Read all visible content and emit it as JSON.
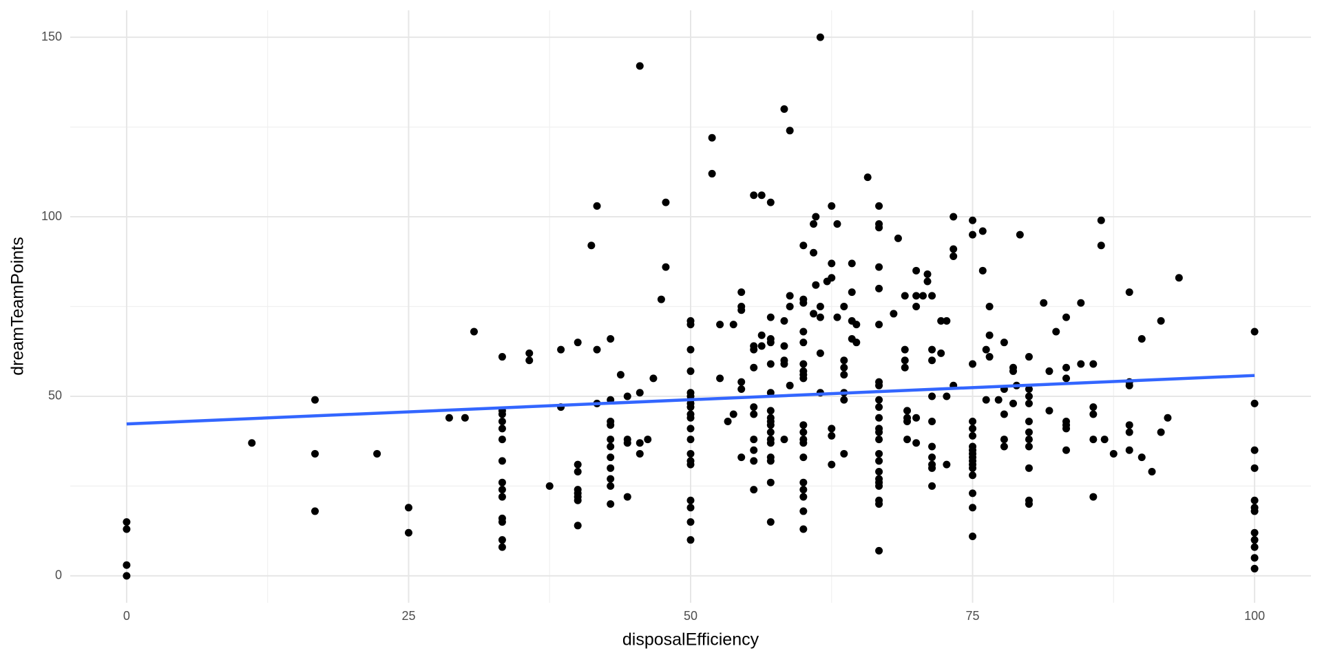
{
  "chart_data": {
    "type": "scatter",
    "x_label": "disposalEfficiency",
    "y_label": "dreamTeamPoints",
    "xlim": [
      -5,
      105
    ],
    "ylim": [
      -7.5,
      157.5
    ],
    "xticks": [
      0,
      25,
      50,
      75,
      100
    ],
    "yticks": [
      0,
      50,
      100,
      150
    ],
    "x_minor_grid": [
      12.5,
      37.5,
      62.5,
      87.5
    ],
    "y_minor_grid": [
      25,
      75,
      125
    ],
    "grid": true,
    "series": [
      {
        "color": "#000000",
        "x": [
          0,
          0,
          0,
          0,
          11.1,
          16.7,
          16.7,
          16.7,
          22.2,
          25,
          25,
          28.6,
          30,
          30.8,
          33.3,
          33.3,
          33.3,
          33.3,
          33.3,
          33.3,
          33.3,
          33.3,
          33.3,
          33.3,
          33.3,
          33.3,
          33.3,
          33.3,
          35.7,
          35.7,
          37.5,
          38.5,
          38.5,
          40,
          40,
          40,
          40,
          40,
          40,
          40,
          40,
          41.2,
          41.7,
          41.7,
          41.7,
          42.9,
          42.9,
          42.9,
          42.9,
          42.9,
          42.9,
          42.9,
          42.9,
          42.9,
          42.9,
          42.9,
          43.8,
          44.4,
          44.4,
          44.4,
          44.4,
          45.5,
          45.5,
          45.5,
          45.5,
          46.2,
          46.7,
          47.4,
          47.8,
          47.8,
          50,
          50,
          50,
          50,
          50,
          50,
          50,
          50,
          50,
          50,
          50,
          50,
          50,
          50,
          50,
          50,
          50,
          50,
          50,
          50,
          51.9,
          51.9,
          52.6,
          52.6,
          53.3,
          53.8,
          53.8,
          54.5,
          54.5,
          54.5,
          54.5,
          54.5,
          54.5,
          55.6,
          55.6,
          55.6,
          55.6,
          55.6,
          55.6,
          55.6,
          55.6,
          55.6,
          55.6,
          56.3,
          56.3,
          56.3,
          57.1,
          57.1,
          57.1,
          57.1,
          57.1,
          57.1,
          57.1,
          57.1,
          57.1,
          57.1,
          57.1,
          57.1,
          57.1,
          57.1,
          57.1,
          57.1,
          57.1,
          58.3,
          58.3,
          58.3,
          58.3,
          58.3,
          58.3,
          58.8,
          58.8,
          58.8,
          58.8,
          60,
          60,
          60,
          60,
          60,
          60,
          60,
          60,
          60,
          60,
          60,
          60,
          60,
          60,
          60,
          60,
          60,
          60,
          60,
          60.9,
          60.9,
          60.9,
          61.1,
          61.1,
          61.5,
          61.5,
          61.5,
          61.5,
          61.5,
          62.1,
          62.5,
          62.5,
          62.5,
          62.5,
          62.5,
          62.5,
          63,
          63,
          63.6,
          63.6,
          63.6,
          63.6,
          63.6,
          63.6,
          63.6,
          64.3,
          64.3,
          64.3,
          64.3,
          64.7,
          64.7,
          65.7,
          66.7,
          66.7,
          66.7,
          66.7,
          66.7,
          66.7,
          66.7,
          66.7,
          66.7,
          66.7,
          66.7,
          66.7,
          66.7,
          66.7,
          66.7,
          66.7,
          66.7,
          66.7,
          66.7,
          66.7,
          66.7,
          66.7,
          66.7,
          68,
          68.4,
          69,
          69,
          69,
          69,
          69.2,
          69.2,
          69.2,
          69.2,
          70,
          70,
          70,
          70,
          70,
          70.6,
          71,
          71,
          71.4,
          71.4,
          71.4,
          71.4,
          71.4,
          71.4,
          71.4,
          71.4,
          71.4,
          71.4,
          72.2,
          72.2,
          72.7,
          72.7,
          72.7,
          73.3,
          73.3,
          73.3,
          73.3,
          75,
          75,
          75,
          75,
          75,
          75,
          75,
          75,
          75,
          75,
          75,
          75,
          75,
          75,
          75,
          75,
          75,
          75.9,
          75.9,
          76.2,
          76.2,
          76.5,
          76.5,
          76.5,
          77.3,
          77.8,
          77.8,
          77.8,
          77.8,
          77.8,
          78.6,
          78.6,
          78.6,
          78.9,
          79.2,
          80,
          80,
          80,
          80,
          80,
          80,
          80,
          80,
          80,
          80,
          80,
          81.3,
          81.8,
          81.8,
          82.4,
          83.3,
          83.3,
          83.3,
          83.3,
          83.3,
          83.3,
          83.3,
          84.6,
          84.6,
          85.7,
          85.7,
          85.7,
          85.7,
          85.7,
          86.4,
          86.4,
          86.7,
          87.5,
          88.9,
          88.9,
          88.9,
          88.9,
          88.9,
          88.9,
          90,
          90,
          90.9,
          91.7,
          91.7,
          92.3,
          93.3,
          100,
          100,
          100,
          100,
          100,
          100,
          100,
          100,
          100,
          100,
          100,
          100
        ],
        "values": [
          15,
          13,
          3,
          0,
          37,
          49,
          34,
          18,
          34,
          19,
          12,
          44,
          44,
          68,
          61,
          46,
          45,
          43,
          41,
          38,
          32,
          26,
          24,
          22,
          16,
          15,
          10,
          8,
          62,
          60,
          25,
          63,
          47,
          65,
          31,
          29,
          24,
          23,
          22,
          21,
          14,
          92,
          103,
          63,
          48,
          66,
          49,
          43,
          42,
          38,
          36,
          33,
          30,
          27,
          25,
          20,
          56,
          50,
          38,
          37,
          22,
          142,
          51,
          37,
          34,
          38,
          55,
          77,
          104,
          86,
          71,
          70,
          63,
          57,
          51,
          50,
          49,
          48,
          47,
          45,
          44,
          41,
          38,
          34,
          32,
          31,
          21,
          19,
          15,
          10,
          122,
          112,
          70,
          55,
          43,
          70,
          45,
          79,
          75,
          74,
          54,
          52,
          33,
          106,
          64,
          63,
          58,
          47,
          45,
          38,
          35,
          32,
          24,
          106,
          67,
          64,
          104,
          72,
          66,
          65,
          59,
          51,
          46,
          44,
          43,
          42,
          40,
          38,
          37,
          33,
          32,
          26,
          15,
          130,
          71,
          64,
          60,
          59,
          38,
          124,
          78,
          75,
          53,
          92,
          77,
          76,
          68,
          65,
          59,
          57,
          56,
          55,
          42,
          40,
          38,
          37,
          33,
          26,
          24,
          22,
          18,
          13,
          98,
          90,
          73,
          100,
          81,
          150,
          75,
          72,
          62,
          51,
          82,
          103,
          87,
          83,
          41,
          39,
          31,
          98,
          72,
          75,
          60,
          58,
          56,
          51,
          49,
          34,
          87,
          79,
          71,
          66,
          70,
          65,
          111,
          103,
          98,
          97,
          86,
          80,
          70,
          54,
          53,
          49,
          47,
          44,
          41,
          40,
          38,
          34,
          32,
          29,
          27,
          26,
          25,
          21,
          20,
          7,
          73,
          94,
          78,
          63,
          60,
          58,
          46,
          44,
          43,
          38,
          85,
          78,
          75,
          44,
          37,
          78,
          84,
          82,
          78,
          63,
          60,
          50,
          43,
          36,
          33,
          31,
          30,
          25,
          71,
          62,
          71,
          50,
          31,
          100,
          91,
          89,
          53,
          99,
          95,
          59,
          43,
          41,
          39,
          36,
          35,
          34,
          33,
          32,
          31,
          30,
          28,
          23,
          19,
          11,
          96,
          85,
          63,
          49,
          75,
          67,
          61,
          49,
          65,
          52,
          45,
          38,
          36,
          58,
          57,
          48,
          53,
          95,
          61,
          52,
          50,
          48,
          43,
          40,
          38,
          36,
          30,
          21,
          20,
          76,
          57,
          46,
          68,
          72,
          58,
          55,
          43,
          42,
          41,
          35,
          76,
          59,
          59,
          47,
          45,
          38,
          22,
          99,
          92,
          38,
          34,
          79,
          54,
          53,
          42,
          40,
          35,
          66,
          33,
          29,
          71,
          40,
          44,
          83,
          68,
          48,
          35,
          30,
          21,
          19,
          18,
          12,
          10,
          8,
          5,
          2
        ]
      }
    ],
    "fit_line": {
      "x": [
        0,
        100
      ],
      "y": [
        42.3,
        55.8
      ],
      "color": "#3366ff"
    }
  }
}
